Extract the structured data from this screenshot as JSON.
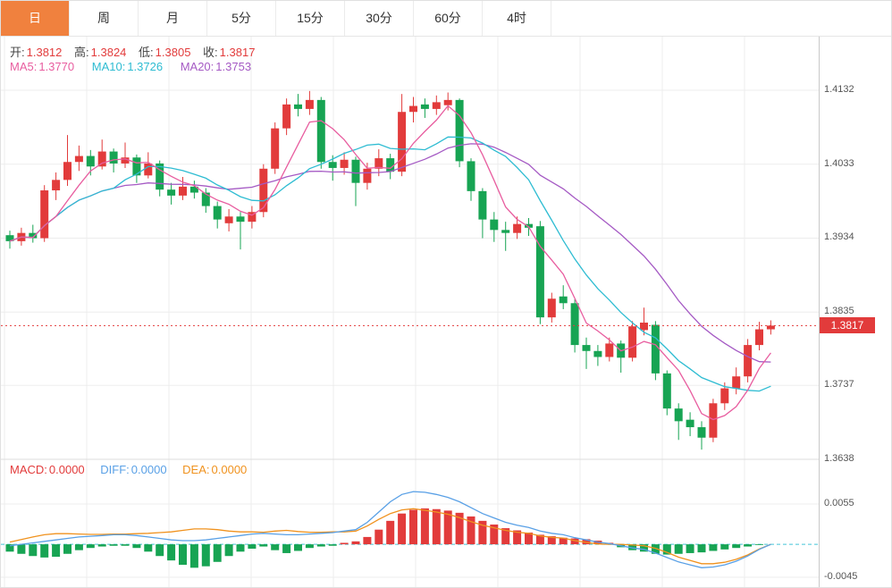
{
  "toolbar": {
    "tabs": [
      {
        "label": "日",
        "active": true
      },
      {
        "label": "周"
      },
      {
        "label": "月"
      },
      {
        "label": "5分"
      },
      {
        "label": "15分"
      },
      {
        "label": "30分"
      },
      {
        "label": "60分"
      },
      {
        "label": "4时"
      }
    ]
  },
  "legend": {
    "ohlc": [
      {
        "label": "开:",
        "value": "1.3812"
      },
      {
        "label": "高:",
        "value": "1.3824"
      },
      {
        "label": "低:",
        "value": "1.3805"
      },
      {
        "label": "收:",
        "value": "1.3817"
      }
    ],
    "ma": [
      {
        "label": "MA5:",
        "value": "1.3770"
      },
      {
        "label": "MA10:",
        "value": "1.3726"
      },
      {
        "label": "MA20:",
        "value": "1.3753"
      }
    ],
    "macd": [
      {
        "label": "MACD:",
        "value": "0.0000"
      },
      {
        "label": "DIFF:",
        "value": "0.0000"
      },
      {
        "label": "DEA:",
        "value": "0.0000"
      }
    ]
  },
  "axis": {
    "main": [
      "1.4132",
      "1.4033",
      "1.3934",
      "1.3835",
      "1.3737",
      "1.3638"
    ],
    "macd": [
      "0.0055",
      "-0.0045"
    ]
  },
  "price_tag": {
    "value": "1.3817"
  },
  "chart_data": {
    "type": "candlestick",
    "panels": [
      "price with MA5/MA10/MA20",
      "MACD(DIFF, DEA, histogram)"
    ],
    "y_axis": {
      "price_ticks": [
        1.4132,
        1.4033,
        1.3934,
        1.3835,
        1.3737,
        1.3638
      ],
      "macd_ticks": [
        0.0055,
        -0.0045
      ]
    },
    "last_price": 1.3817,
    "colors": {
      "up": "#e23b3b",
      "down": "#17a453",
      "ma5": "#e85d9f",
      "ma10": "#2ebcd2",
      "ma20": "#a55ac4",
      "diff": "#59a0e6",
      "dea": "#f0921e",
      "zero_line": "#45c5d8",
      "tag_bg": "#e23b3b",
      "accent": "#f0813e",
      "grid": "#ededed"
    },
    "candles": [
      [
        1.3938,
        1.3944,
        1.392,
        1.393
      ],
      [
        1.393,
        1.3948,
        1.3924,
        1.3941
      ],
      [
        1.3941,
        1.3952,
        1.3928,
        1.3934
      ],
      [
        1.3934,
        1.4005,
        1.3929,
        1.3998
      ],
      [
        1.3998,
        1.4022,
        1.3985,
        1.4012
      ],
      [
        1.4012,
        1.4072,
        1.4004,
        1.4036
      ],
      [
        1.4036,
        1.4058,
        1.4024,
        1.4044
      ],
      [
        1.4044,
        1.4052,
        1.4018,
        1.403
      ],
      [
        1.403,
        1.4066,
        1.4026,
        1.405
      ],
      [
        1.405,
        1.4054,
        1.4022,
        1.4034
      ],
      [
        1.4034,
        1.4062,
        1.4028,
        1.4042
      ],
      [
        1.4042,
        1.4046,
        1.4008,
        1.4018
      ],
      [
        1.4018,
        1.4049,
        1.4014,
        1.4034
      ],
      [
        1.4034,
        1.4038,
        1.399,
        1.3999
      ],
      [
        1.3999,
        1.4008,
        1.3979,
        1.3991
      ],
      [
        1.3991,
        1.4016,
        1.3985,
        1.4003
      ],
      [
        1.4003,
        1.4011,
        1.3987,
        1.3995
      ],
      [
        1.3995,
        1.4001,
        1.3968,
        1.3977
      ],
      [
        1.3977,
        1.3983,
        1.3947,
        1.3959
      ],
      [
        1.3954,
        1.3973,
        1.3943,
        1.3963
      ],
      [
        1.3963,
        1.3969,
        1.3919,
        1.3956
      ],
      [
        1.3956,
        1.3977,
        1.3947,
        1.3969
      ],
      [
        1.3969,
        1.4033,
        1.3962,
        1.4027
      ],
      [
        1.4027,
        1.4089,
        1.402,
        1.4081
      ],
      [
        1.4081,
        1.4121,
        1.4072,
        1.4113
      ],
      [
        1.4113,
        1.4127,
        1.4097,
        1.4107
      ],
      [
        1.4107,
        1.4131,
        1.4099,
        1.4119
      ],
      [
        1.4119,
        1.4123,
        1.4027,
        1.4036
      ],
      [
        1.4036,
        1.4045,
        1.4011,
        1.4028
      ],
      [
        1.4028,
        1.4049,
        1.4019,
        1.4039
      ],
      [
        1.4039,
        1.4043,
        1.3977,
        1.4008
      ],
      [
        1.4008,
        1.4035,
        1.3999,
        1.4027
      ],
      [
        1.4027,
        1.4053,
        1.4017,
        1.4041
      ],
      [
        1.4041,
        1.4047,
        1.4013,
        1.4023
      ],
      [
        1.4023,
        1.4127,
        1.4017,
        1.4103
      ],
      [
        1.4103,
        1.4123,
        1.4089,
        1.4111
      ],
      [
        1.4113,
        1.4121,
        1.4095,
        1.4107
      ],
      [
        1.4107,
        1.4125,
        1.4099,
        1.4116
      ],
      [
        1.4112,
        1.4129,
        1.4105,
        1.4119
      ],
      [
        1.4119,
        1.4121,
        1.4029,
        1.4037
      ],
      [
        1.4037,
        1.4041,
        1.3984,
        1.3997
      ],
      [
        1.3997,
        1.4001,
        1.3934,
        1.3959
      ],
      [
        1.3959,
        1.3969,
        1.3929,
        1.3945
      ],
      [
        1.3945,
        1.3956,
        1.3917,
        1.3941
      ],
      [
        1.3941,
        1.3963,
        1.3933,
        1.3953
      ],
      [
        1.3953,
        1.3961,
        1.3937,
        1.3948
      ],
      [
        1.395,
        1.3957,
        1.3819,
        1.3828
      ],
      [
        1.3828,
        1.3861,
        1.3821,
        1.3853
      ],
      [
        1.3856,
        1.3871,
        1.3839,
        1.3847
      ],
      [
        1.3847,
        1.3852,
        1.3781,
        1.3791
      ],
      [
        1.3791,
        1.3801,
        1.3759,
        1.3783
      ],
      [
        1.3783,
        1.3791,
        1.3763,
        1.3775
      ],
      [
        1.3775,
        1.3801,
        1.3769,
        1.3793
      ],
      [
        1.3793,
        1.3797,
        1.3754,
        1.3774
      ],
      [
        1.3774,
        1.3823,
        1.3769,
        1.3816
      ],
      [
        1.3811,
        1.3841,
        1.3804,
        1.3821
      ],
      [
        1.3818,
        1.3823,
        1.3744,
        1.3753
      ],
      [
        1.3753,
        1.3757,
        1.3697,
        1.3706
      ],
      [
        1.3706,
        1.3713,
        1.3664,
        1.3689
      ],
      [
        1.3691,
        1.3701,
        1.3669,
        1.3681
      ],
      [
        1.3681,
        1.3689,
        1.3651,
        1.3667
      ],
      [
        1.3667,
        1.3719,
        1.3661,
        1.3713
      ],
      [
        1.3713,
        1.3741,
        1.3704,
        1.3733
      ],
      [
        1.3733,
        1.3761,
        1.3725,
        1.3749
      ],
      [
        1.3749,
        1.3799,
        1.3741,
        1.3791
      ],
      [
        1.3791,
        1.3822,
        1.3784,
        1.3812
      ],
      [
        1.3812,
        1.3824,
        1.3805,
        1.3817
      ]
    ],
    "macd": {
      "diff": [
        -0.0002,
        0.0,
        0.0002,
        0.0004,
        0.0006,
        0.0008,
        0.001,
        0.0011,
        0.0012,
        0.0013,
        0.0013,
        0.0012,
        0.001,
        0.0008,
        0.0006,
        0.0005,
        0.0005,
        0.0006,
        0.0008,
        0.001,
        0.0012,
        0.0014,
        0.0015,
        0.0014,
        0.0013,
        0.0013,
        0.0014,
        0.0015,
        0.0016,
        0.0018,
        0.002,
        0.003,
        0.0044,
        0.0058,
        0.0068,
        0.0072,
        0.0071,
        0.0068,
        0.0064,
        0.0058,
        0.005,
        0.0042,
        0.0036,
        0.003,
        0.0026,
        0.0023,
        0.0018,
        0.0015,
        0.0013,
        0.0009,
        0.0006,
        0.0003,
        0.0001,
        -0.0002,
        -0.0005,
        -0.0007,
        -0.0012,
        -0.0018,
        -0.0024,
        -0.0028,
        -0.0032,
        -0.0031,
        -0.0028,
        -0.0023,
        -0.0016,
        -0.0007,
        0.0
      ],
      "hist": [
        -0.001,
        -0.0013,
        -0.0016,
        -0.0018,
        -0.0017,
        -0.0013,
        -0.0008,
        -0.0005,
        -0.0003,
        -0.0002,
        -0.0002,
        -0.0005,
        -0.001,
        -0.0016,
        -0.0022,
        -0.0028,
        -0.0032,
        -0.003,
        -0.0024,
        -0.0016,
        -0.001,
        -0.0006,
        -0.0003,
        -0.0008,
        -0.0012,
        -0.0009,
        -0.0005,
        -0.0003,
        -0.0002,
        0.0002,
        0.0004,
        0.001,
        0.002,
        0.0032,
        0.0042,
        0.0047,
        0.0049,
        0.0048,
        0.0046,
        0.0043,
        0.0038,
        0.0032,
        0.0027,
        0.0022,
        0.0019,
        0.0016,
        0.0013,
        0.0011,
        0.0009,
        0.0008,
        0.0007,
        0.0005,
        0.0002,
        -0.0004,
        -0.0008,
        -0.001,
        -0.0013,
        -0.0014,
        -0.0013,
        -0.0012,
        -0.0011,
        -0.0009,
        -0.0007,
        -0.0005,
        -0.0003,
        -0.0001,
        0.0
      ]
    }
  }
}
